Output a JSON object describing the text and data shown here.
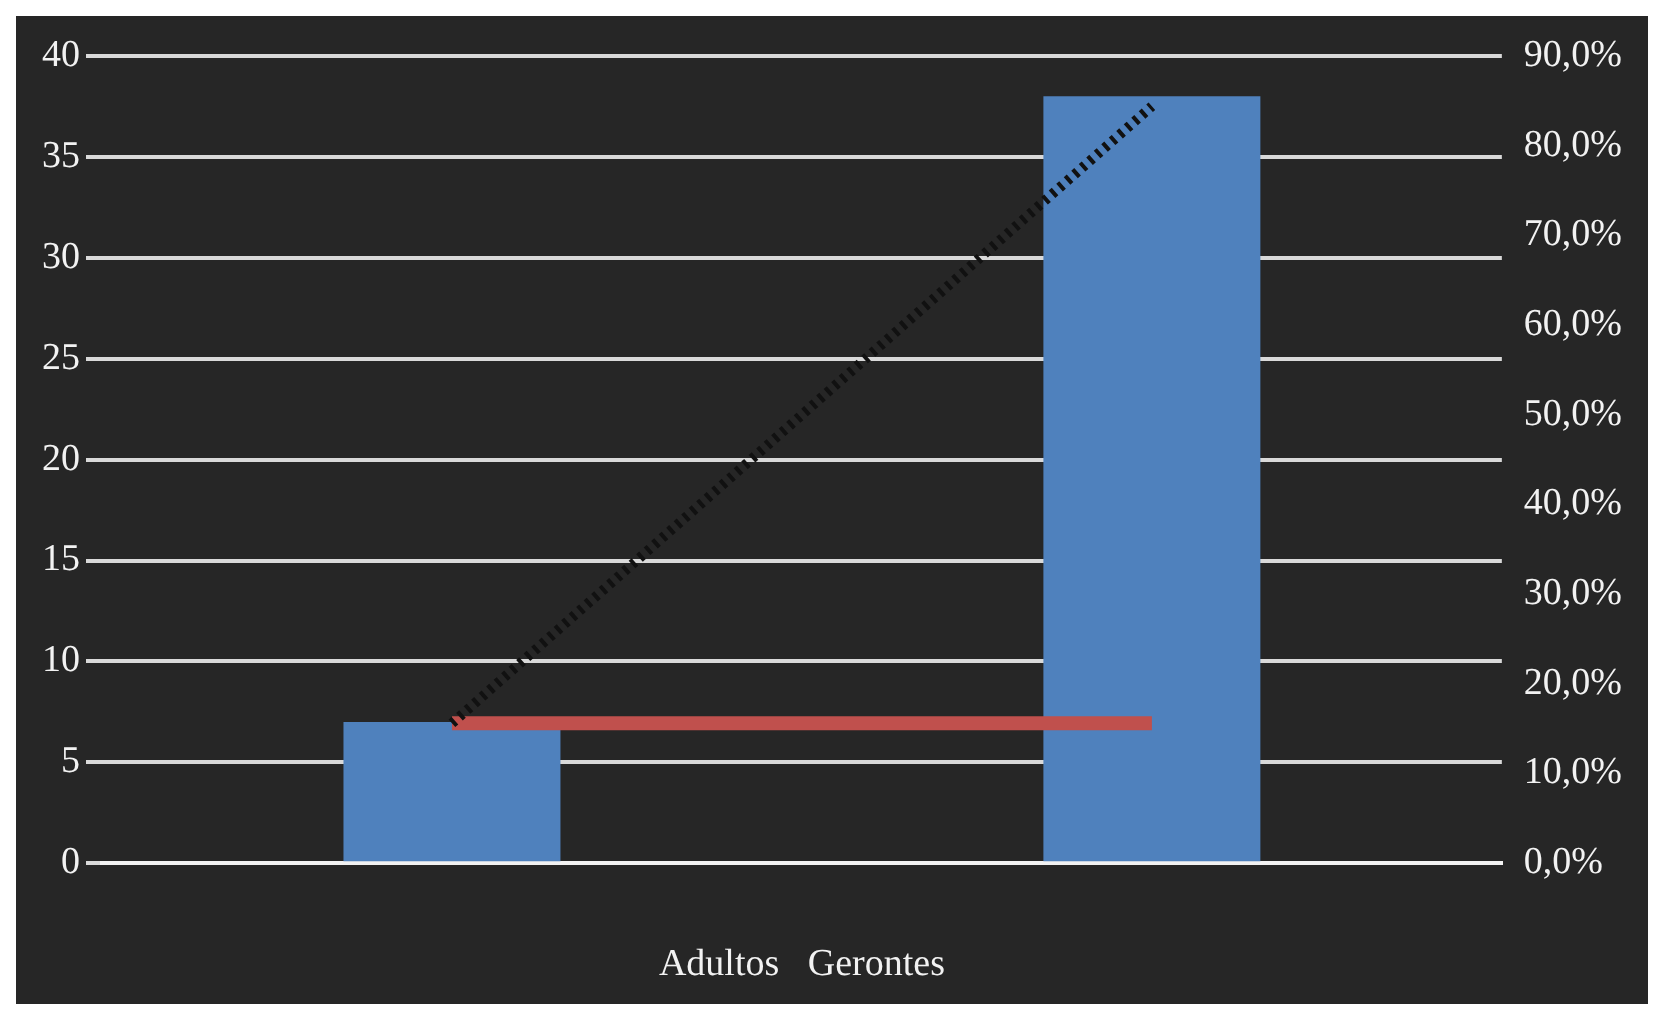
{
  "chart_data": {
    "type": "bar",
    "categories": [
      null,
      null
    ],
    "xlabel": "Adultos   Gerontes",
    "series": [
      {
        "color": "#4f81bd",
        "values": [
          7,
          38
        ]
      },
      {
        "type": "line",
        "axis": "y2",
        "color": "#111111",
        "line_style": "dotted",
        "values": [
          15.6,
          84.4
        ]
      },
      {
        "type": "line",
        "axis": "y2",
        "color": "#c0504d",
        "line_style": "solid",
        "values": [
          15.6,
          15.6
        ]
      }
    ],
    "ylim": [
      0,
      40
    ],
    "yticks": [
      0,
      5,
      10,
      15,
      20,
      25,
      30,
      35,
      40
    ],
    "y2lim": [
      0,
      90
    ],
    "y2ticks": [
      {
        "value": 0,
        "label": "0,0%"
      },
      {
        "value": 10,
        "label": "10,0%"
      },
      {
        "value": 20,
        "label": "20,0%"
      },
      {
        "value": 30,
        "label": "30,0%"
      },
      {
        "value": 40,
        "label": "40,0%"
      },
      {
        "value": 50,
        "label": "50,0%"
      },
      {
        "value": 60,
        "label": "60,0%"
      },
      {
        "value": 70,
        "label": "70,0%"
      },
      {
        "value": 80,
        "label": "80,0%"
      },
      {
        "value": 90,
        "label": "90,0%"
      }
    ],
    "grid": "y",
    "legend": false,
    "marker": "none"
  }
}
